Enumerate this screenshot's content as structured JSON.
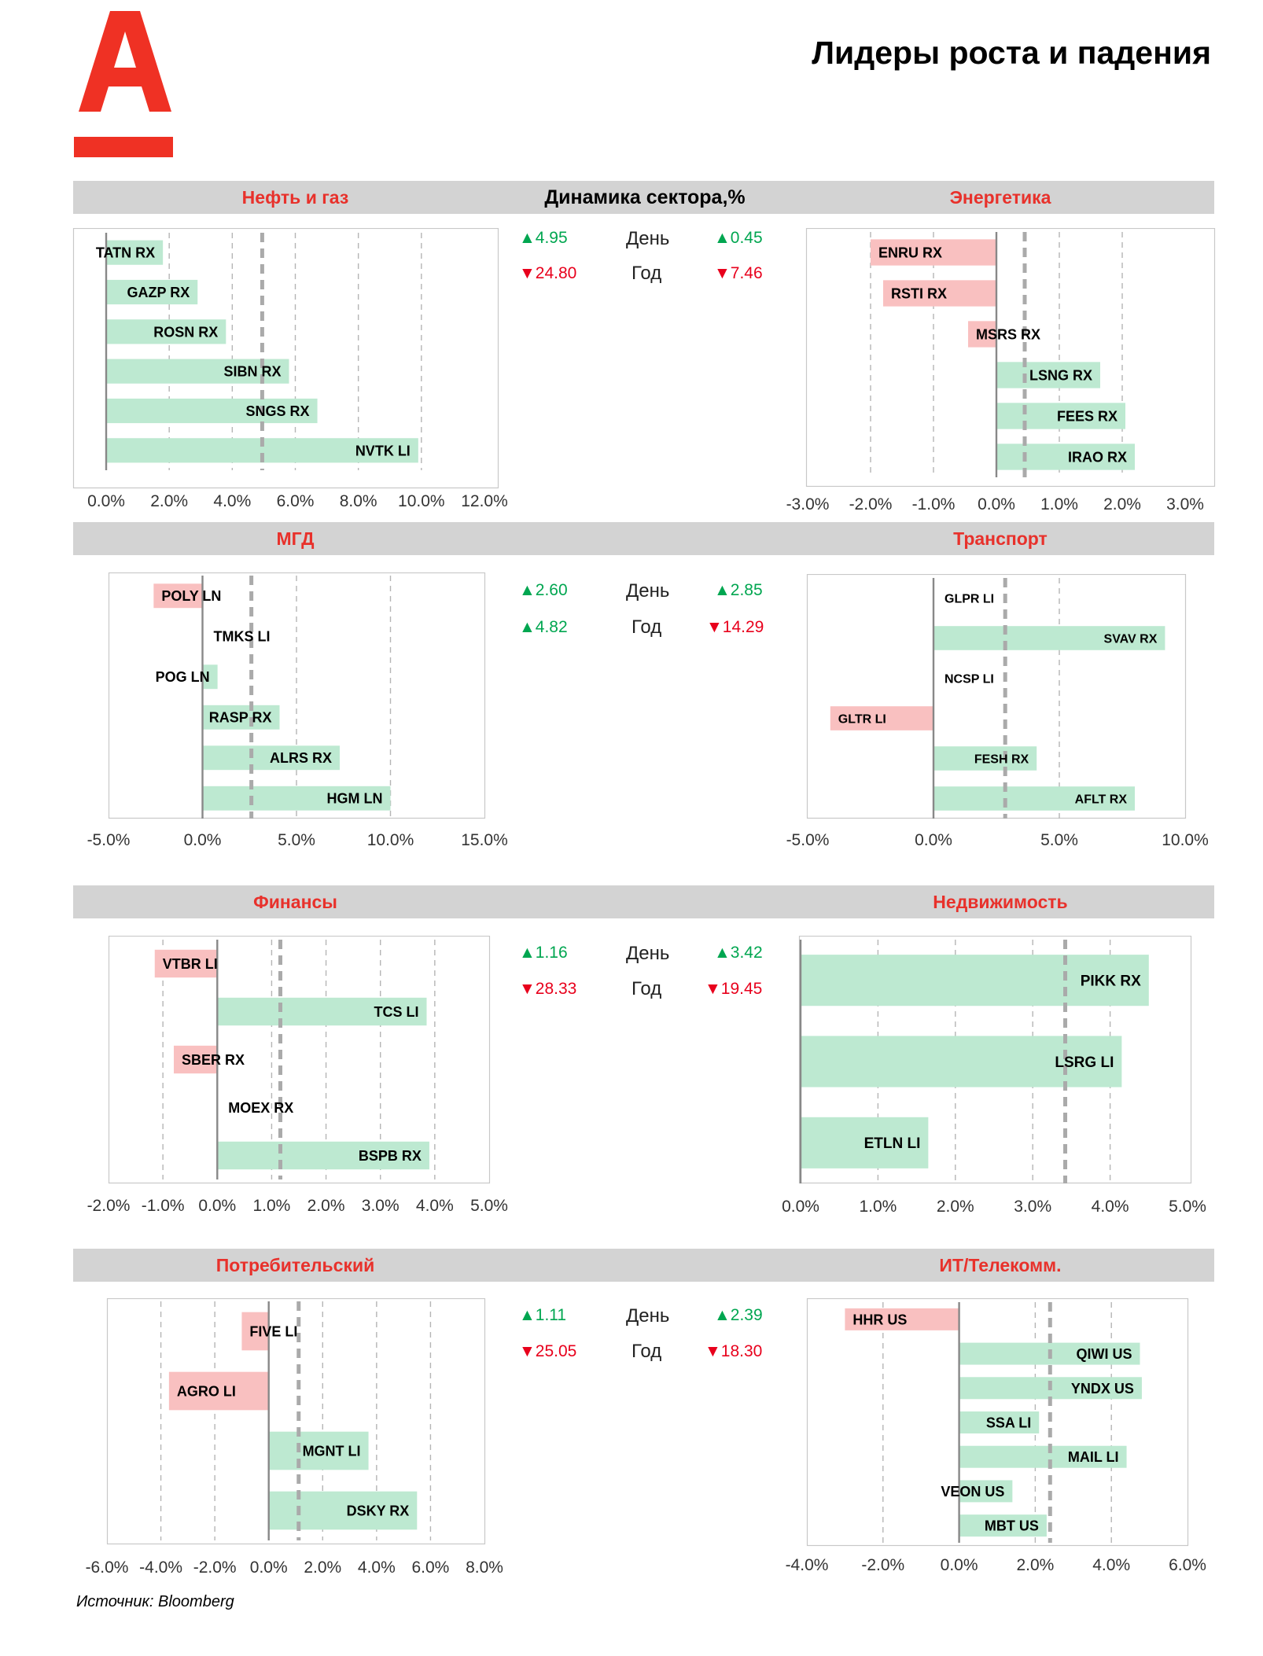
{
  "page": {
    "title": "Лидеры роста и падения",
    "source": "Источник: Bloomberg"
  },
  "brand": {
    "logo_color": "#ef3124",
    "positive_bar": "#bde9d1",
    "negative_bar": "#f9c0c0",
    "positive_text": "#00a650",
    "negative_text": "#e8001c"
  },
  "dynamics_header": "Динамика сектора,%",
  "labels": {
    "day": "День",
    "year": "Год"
  },
  "sectors": [
    {
      "name": "Нефть и газ",
      "stats": {
        "left_day": {
          "dir": "up",
          "value": "4.95"
        },
        "left_year": {
          "dir": "down",
          "value": "24.80"
        }
      },
      "chart_data": {
        "type": "bar",
        "orientation": "horizontal",
        "title": "Нефть и газ",
        "categories": [
          "TATN RX",
          "GAZP RX",
          "ROSN RX",
          "SIBN RX",
          "SNGS RX",
          "NVTK LI"
        ],
        "values": [
          1.8,
          2.9,
          3.8,
          5.8,
          6.7,
          9.9
        ],
        "reference_line": 4.95,
        "xlim": [
          0,
          12
        ],
        "ticks": [
          "0.0%",
          "2.0%",
          "4.0%",
          "6.0%",
          "8.0%",
          "10.0%",
          "12.0%"
        ],
        "grid": true
      }
    },
    {
      "name": "Энергетика",
      "stats": {
        "right_day": {
          "dir": "up",
          "value": "0.45"
        },
        "right_year": {
          "dir": "down",
          "value": "7.46"
        }
      },
      "chart_data": {
        "type": "bar",
        "orientation": "horizontal",
        "title": "Энергетика",
        "categories": [
          "ENRU RX",
          "RSTI RX",
          "MSRS RX",
          "LSNG RX",
          "FEES RX",
          "IRAO RX"
        ],
        "values": [
          -2.0,
          -1.8,
          -0.45,
          1.65,
          2.05,
          2.2
        ],
        "reference_line": 0.45,
        "xlim": [
          -3,
          3
        ],
        "ticks": [
          "-3.0%",
          "-2.0%",
          "-1.0%",
          "0.0%",
          "1.0%",
          "2.0%",
          "3.0%"
        ],
        "grid": true
      }
    },
    {
      "name": "МГД",
      "stats": {
        "left_day": {
          "dir": "up",
          "value": "2.60"
        },
        "left_year": {
          "dir": "up",
          "value": "4.82"
        }
      },
      "chart_data": {
        "type": "bar",
        "orientation": "horizontal",
        "title": "МГД",
        "categories": [
          "POLY LN",
          "TMKS LI",
          "POG LN",
          "RASP RX",
          "ALRS RX",
          "HGM LN"
        ],
        "values": [
          -2.6,
          0.0,
          0.8,
          4.1,
          7.3,
          10.0
        ],
        "reference_line": 2.6,
        "xlim": [
          -5,
          15
        ],
        "ticks": [
          "-5.0%",
          "0.0%",
          "5.0%",
          "10.0%",
          "15.0%"
        ],
        "grid": true
      }
    },
    {
      "name": "Транспорт",
      "stats": {
        "right_day": {
          "dir": "up",
          "value": "2.85"
        },
        "right_year": {
          "dir": "down",
          "value": "14.29"
        }
      },
      "chart_data": {
        "type": "bar",
        "orientation": "horizontal",
        "title": "Транспорт",
        "categories": [
          "GLPR LI",
          "SVAV RX",
          "NCSP LI",
          "GLTR LI",
          "FESH RX",
          "AFLT RX"
        ],
        "values": [
          0.0,
          9.2,
          0.0,
          -4.1,
          4.1,
          8.0
        ],
        "reference_line": 2.85,
        "xlim": [
          -5,
          10
        ],
        "ticks": [
          "-5.0%",
          "0.0%",
          "5.0%",
          "10.0%"
        ],
        "grid": true
      }
    },
    {
      "name": "Финансы",
      "stats": {
        "left_day": {
          "dir": "up",
          "value": "1.16"
        },
        "left_year": {
          "dir": "down",
          "value": "28.33"
        }
      },
      "chart_data": {
        "type": "bar",
        "orientation": "horizontal",
        "title": "Финансы",
        "categories": [
          "VTBR LI",
          "TCS LI",
          "SBER RX",
          "MOEX RX",
          "BSPB RX"
        ],
        "values": [
          -1.15,
          3.85,
          -0.8,
          0.0,
          3.9
        ],
        "reference_line": 1.16,
        "xlim": [
          -2,
          5
        ],
        "ticks": [
          "-2.0%",
          "-1.0%",
          "0.0%",
          "1.0%",
          "2.0%",
          "3.0%",
          "4.0%",
          "5.0%"
        ],
        "grid": true
      }
    },
    {
      "name": "Недвижимость",
      "stats": {
        "right_day": {
          "dir": "up",
          "value": "3.42"
        },
        "right_year": {
          "dir": "down",
          "value": "19.45"
        }
      },
      "chart_data": {
        "type": "bar",
        "orientation": "horizontal",
        "title": "Недвижимость",
        "categories": [
          "PIKK RX",
          "LSRG LI",
          "ETLN LI"
        ],
        "values": [
          4.5,
          4.15,
          1.65
        ],
        "reference_line": 3.42,
        "xlim": [
          0,
          5
        ],
        "ticks": [
          "0.0%",
          "1.0%",
          "2.0%",
          "3.0%",
          "4.0%",
          "5.0%"
        ],
        "grid": true
      }
    },
    {
      "name": "Потребительский",
      "stats": {
        "left_day": {
          "dir": "up",
          "value": "1.11"
        },
        "left_year": {
          "dir": "down",
          "value": "25.05"
        }
      },
      "chart_data": {
        "type": "bar",
        "orientation": "horizontal",
        "title": "Потребительский",
        "categories": [
          "FIVE LI",
          "AGRO LI",
          "MGNT LI",
          "DSKY RX"
        ],
        "values": [
          -1.0,
          -3.7,
          3.7,
          5.5
        ],
        "reference_line": 1.11,
        "xlim": [
          -6,
          8
        ],
        "ticks": [
          "-6.0%",
          "-4.0%",
          "-2.0%",
          "0.0%",
          "2.0%",
          "4.0%",
          "6.0%",
          "8.0%"
        ],
        "grid": true
      }
    },
    {
      "name": "ИТ/Телекомм.",
      "stats": {
        "right_day": {
          "dir": "up",
          "value": "2.39"
        },
        "right_year": {
          "dir": "down",
          "value": "18.30"
        }
      },
      "chart_data": {
        "type": "bar",
        "orientation": "horizontal",
        "title": "ИТ/Телекомм.",
        "categories": [
          "HHR US",
          "QIWI US",
          "YNDX US",
          "SSA LI",
          "MAIL LI",
          "VEON US",
          "MBT US"
        ],
        "values": [
          -3.0,
          4.75,
          4.8,
          2.1,
          4.4,
          1.4,
          2.3
        ],
        "reference_line": 2.39,
        "xlim": [
          -4,
          6
        ],
        "ticks": [
          "-4.0%",
          "-2.0%",
          "0.0%",
          "2.0%",
          "4.0%",
          "6.0%"
        ],
        "grid": true
      }
    }
  ]
}
